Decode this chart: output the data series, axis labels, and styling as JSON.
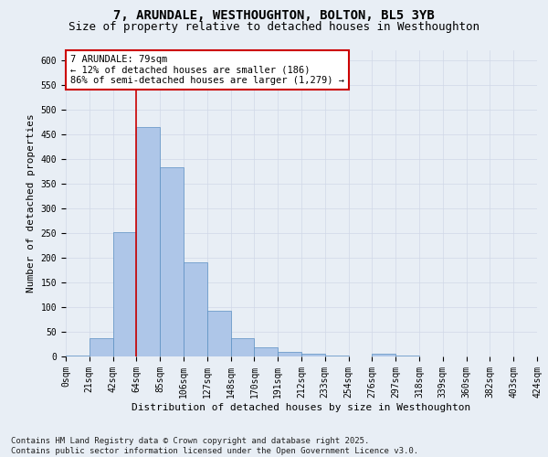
{
  "title_line1": "7, ARUNDALE, WESTHOUGHTON, BOLTON, BL5 3YB",
  "title_line2": "Size of property relative to detached houses in Westhoughton",
  "xlabel": "Distribution of detached houses by size in Westhoughton",
  "ylabel": "Number of detached properties",
  "bin_labels": [
    "0sqm",
    "21sqm",
    "42sqm",
    "64sqm",
    "85sqm",
    "106sqm",
    "127sqm",
    "148sqm",
    "170sqm",
    "191sqm",
    "212sqm",
    "233sqm",
    "254sqm",
    "276sqm",
    "297sqm",
    "318sqm",
    "339sqm",
    "360sqm",
    "382sqm",
    "403sqm",
    "424sqm"
  ],
  "bar_values": [
    2,
    37,
    252,
    465,
    383,
    190,
    93,
    37,
    18,
    10,
    5,
    2,
    0,
    5,
    2,
    0,
    0,
    0,
    0,
    0
  ],
  "bar_color": "#aec6e8",
  "bar_edge_color": "#5a8fc2",
  "grid_color": "#d0d8e8",
  "background_color": "#e8eef5",
  "annotation_box_text": "7 ARUNDALE: 79sqm\n← 12% of detached houses are smaller (186)\n86% of semi-detached houses are larger (1,279) →",
  "annotation_box_color": "#ffffff",
  "annotation_box_edge_color": "#cc0000",
  "vline_x": 3,
  "vline_color": "#cc0000",
  "ylim": [
    0,
    620
  ],
  "yticks": [
    0,
    50,
    100,
    150,
    200,
    250,
    300,
    350,
    400,
    450,
    500,
    550,
    600
  ],
  "footer_text": "Contains HM Land Registry data © Crown copyright and database right 2025.\nContains public sector information licensed under the Open Government Licence v3.0.",
  "title_fontsize": 10,
  "subtitle_fontsize": 9,
  "axis_label_fontsize": 8,
  "tick_fontsize": 7,
  "annotation_fontsize": 7.5,
  "footer_fontsize": 6.5
}
